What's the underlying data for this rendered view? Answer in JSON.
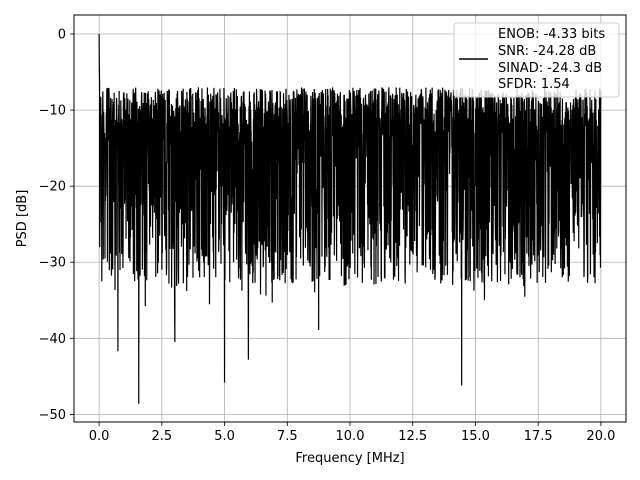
{
  "chart_data": {
    "type": "line",
    "title": "",
    "xlabel": "Frequency [MHz]",
    "ylabel": "PSD [dB]",
    "xlim": [
      -1.0,
      21.0
    ],
    "ylim": [
      -51.0,
      2.5
    ],
    "xticks": [
      0.0,
      2.5,
      5.0,
      7.5,
      10.0,
      12.5,
      15.0,
      17.5,
      20.0
    ],
    "xtick_labels": [
      "0.0",
      "2.5",
      "5.0",
      "7.5",
      "10.0",
      "12.5",
      "15.0",
      "17.5",
      "20.0"
    ],
    "yticks": [
      0,
      -10,
      -20,
      -30,
      -40,
      -50
    ],
    "ytick_labels": [
      "0",
      "−10",
      "−20",
      "−30",
      "−40",
      "−50"
    ],
    "grid": true,
    "legend_position": "top-right",
    "series": [
      {
        "legend": [
          "ENOB: -4.33 bits",
          "SNR: -24.28 dB",
          "SINAD: -24.3 dB",
          "SFDR: 1.54"
        ],
        "color": "#000000",
        "x_range": [
          0.0,
          20.0
        ],
        "peak": {
          "x": 0.0,
          "y": 0.0
        },
        "typical_band": [
          -27.0,
          -7.0
        ],
        "notable_minima": [
          {
            "x": 0.75,
            "y": -41.7
          },
          {
            "x": 1.58,
            "y": -48.6
          },
          {
            "x": 3.02,
            "y": -40.5
          },
          {
            "x": 5.0,
            "y": -45.8
          },
          {
            "x": 5.95,
            "y": -42.8
          },
          {
            "x": 8.75,
            "y": -38.9
          },
          {
            "x": 14.45,
            "y": -46.2
          }
        ]
      }
    ]
  }
}
